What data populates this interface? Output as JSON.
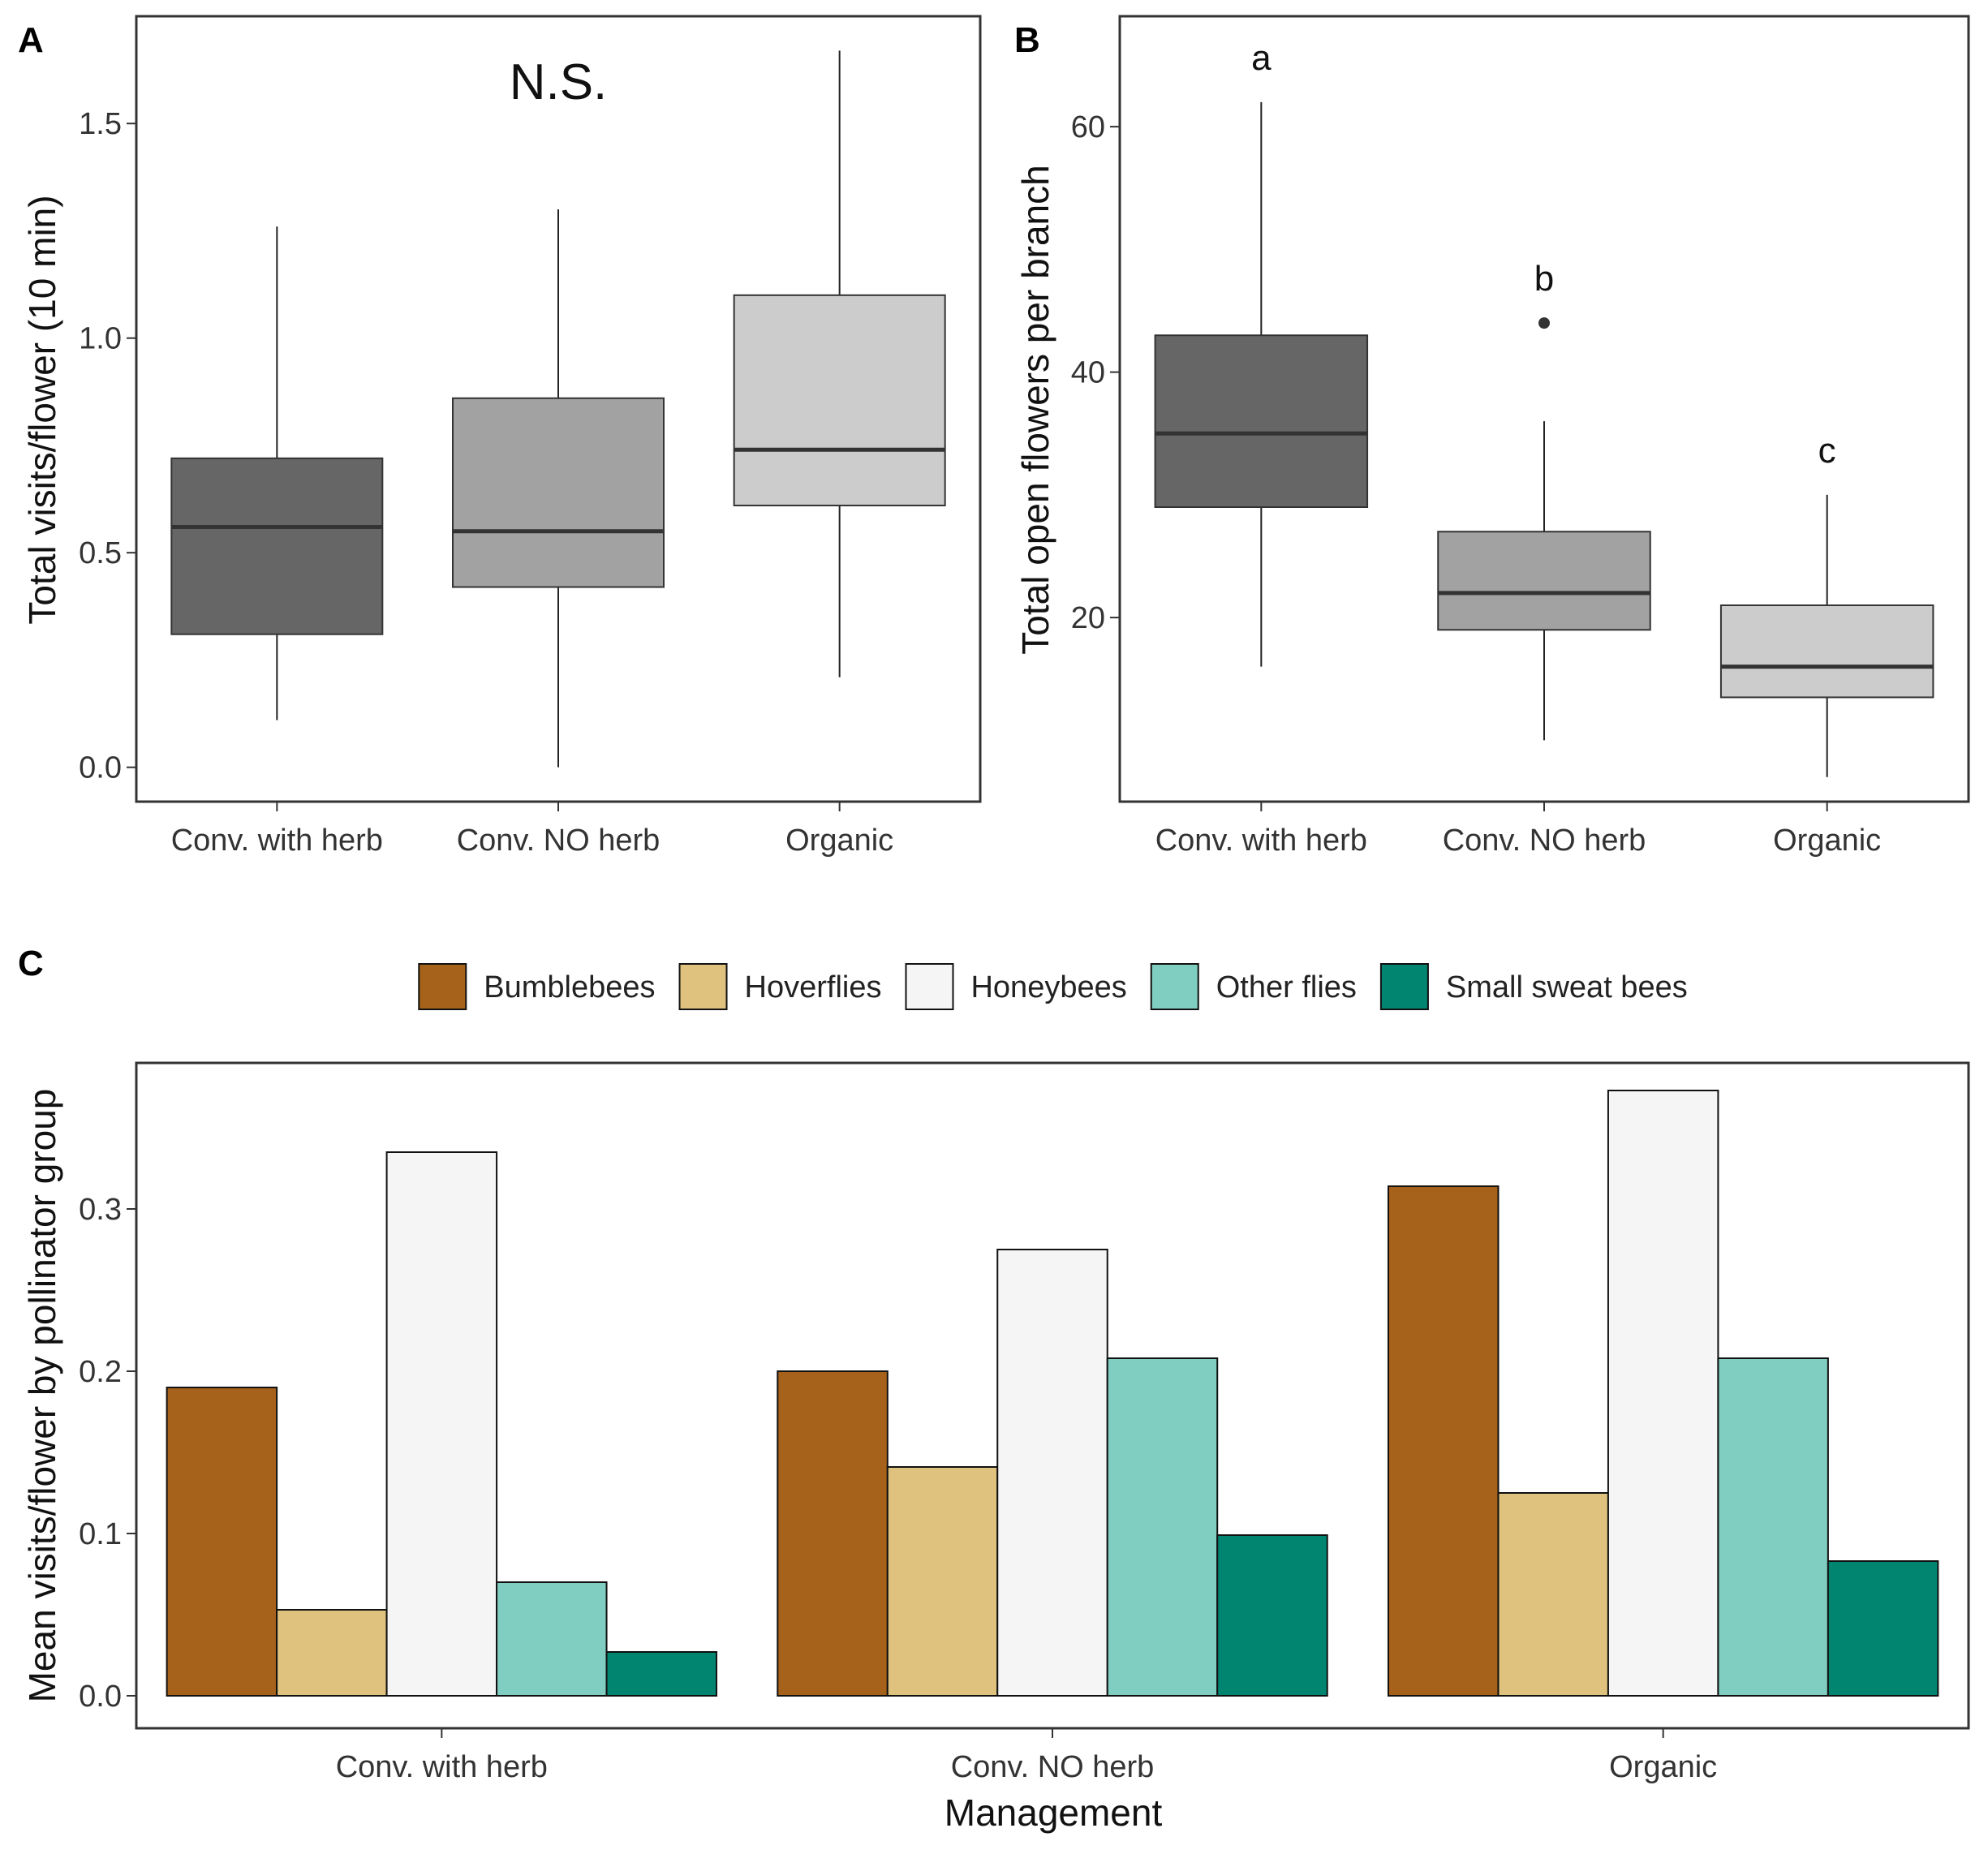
{
  "chart_data": [
    {
      "panel": "A",
      "type": "box",
      "annotation": "N.S.",
      "ylabel": "Total visits/flower (10 min)",
      "ylim": [
        -0.08,
        1.75
      ],
      "yticks": [
        0.0,
        0.5,
        1.0,
        1.5
      ],
      "ytick_labels": [
        "0.0",
        "0.5",
        "1.0",
        "1.5"
      ],
      "categories": [
        "Conv. with herb",
        "Conv. NO herb",
        "Organic"
      ],
      "colors": [
        "#666666",
        "#a2a2a2",
        "#cccccc"
      ],
      "boxes": [
        {
          "min": 0.11,
          "q1": 0.31,
          "median": 0.56,
          "q3": 0.72,
          "max": 1.26,
          "outliers": []
        },
        {
          "min": 0.0,
          "q1": 0.42,
          "median": 0.55,
          "q3": 0.86,
          "max": 1.3,
          "outliers": []
        },
        {
          "min": 0.21,
          "q1": 0.61,
          "median": 0.74,
          "q3": 1.1,
          "max": 1.67,
          "outliers": []
        }
      ]
    },
    {
      "panel": "B",
      "type": "box",
      "ylabel": "Total open flowers per branch",
      "ylim": [
        5,
        69
      ],
      "yticks": [
        20,
        40,
        60
      ],
      "ytick_labels": [
        "20",
        "40",
        "60"
      ],
      "categories": [
        "Conv. with herb",
        "Conv. NO herb",
        "Organic"
      ],
      "colors": [
        "#666666",
        "#a2a2a2",
        "#cccccc"
      ],
      "letters": [
        "a",
        "b",
        "c"
      ],
      "boxes": [
        {
          "min": 16,
          "q1": 29,
          "median": 35,
          "q3": 43,
          "max": 62,
          "outliers": []
        },
        {
          "min": 10,
          "q1": 19,
          "median": 22,
          "q3": 27,
          "max": 36,
          "outliers": [
            44
          ]
        },
        {
          "min": 7,
          "q1": 13.5,
          "median": 16,
          "q3": 21,
          "max": 30,
          "outliers": []
        }
      ]
    },
    {
      "panel": "C",
      "type": "bar",
      "xlabel": "Management",
      "ylabel": "Mean visits/flower by pollinator group",
      "ylim": [
        -0.02,
        0.39
      ],
      "yticks": [
        0.0,
        0.1,
        0.2,
        0.3
      ],
      "ytick_labels": [
        "0.0",
        "0.1",
        "0.2",
        "0.3"
      ],
      "categories": [
        "Conv. with herb",
        "Conv. NO herb",
        "Organic"
      ],
      "series": [
        {
          "name": "Bumblebees",
          "color": "#a6611a",
          "values": [
            0.19,
            0.2,
            0.314
          ]
        },
        {
          "name": "Hoverflies",
          "color": "#dfc27d",
          "values": [
            0.053,
            0.141,
            0.125
          ]
        },
        {
          "name": "Honeybees",
          "color": "#f5f5f5",
          "values": [
            0.335,
            0.275,
            0.373
          ]
        },
        {
          "name": "Other flies",
          "color": "#80cdc1",
          "values": [
            0.07,
            0.208,
            0.208
          ]
        },
        {
          "name": "Small sweat bees",
          "color": "#018571",
          "values": [
            0.027,
            0.099,
            0.083
          ]
        }
      ]
    }
  ]
}
